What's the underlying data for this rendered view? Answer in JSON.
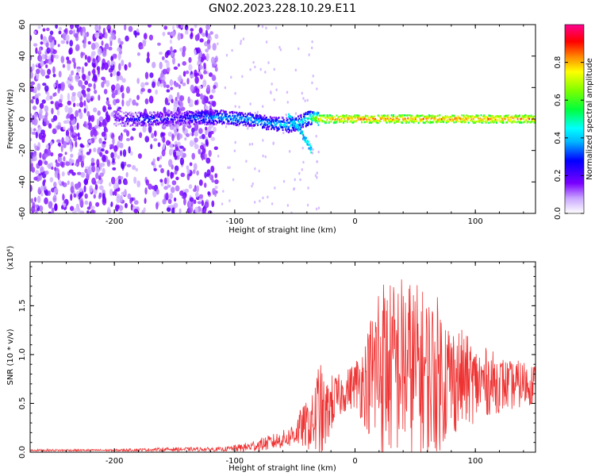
{
  "title": "GN02.2023.228.10.29.E11",
  "chart_data": [
    {
      "type": "heatmap",
      "xlabel": "Height of straight line (km)",
      "ylabel": "Frequency (Hz)",
      "xlim": [
        -270,
        150
      ],
      "ylim": [
        -60,
        60
      ],
      "x_ticks": [
        -200,
        -100,
        0,
        100
      ],
      "y_ticks": [
        -60,
        -40,
        -20,
        0,
        20,
        40,
        60
      ],
      "colorbar": {
        "label": "Normalized spectral amplitude",
        "range": [
          0,
          1
        ],
        "ticks": [
          "0.0",
          "0.2",
          "0.4",
          "0.6",
          "0.8"
        ],
        "colormap": [
          "#ffffff",
          "#7a00ff",
          "#0000ff",
          "#00ffff",
          "#00ff00",
          "#ffff00",
          "#ff7f00",
          "#ff0000",
          "#ff0090"
        ]
      },
      "ridge": {
        "x": [
          -195,
          -170,
          -150,
          -130,
          -110,
          -90,
          -70,
          -55,
          -45,
          -38,
          -30,
          -10,
          10,
          30,
          50,
          70,
          90,
          110,
          130,
          150
        ],
        "freq": [
          0,
          0,
          0,
          1,
          1,
          0,
          -3,
          -4,
          -2,
          1,
          0,
          0,
          0,
          0,
          0,
          0,
          0,
          0,
          0,
          0
        ],
        "amplitude": [
          0.25,
          0.35,
          0.3,
          0.4,
          0.45,
          0.45,
          0.45,
          0.5,
          0.5,
          0.55,
          0.85,
          0.9,
          0.9,
          0.9,
          0.9,
          0.9,
          0.9,
          0.9,
          0.9,
          0.9
        ]
      },
      "branch": {
        "x": [
          -55,
          -48,
          -42,
          -36
        ],
        "freq": [
          2,
          -5,
          -12,
          -20
        ]
      }
    },
    {
      "type": "line",
      "xlabel": "Height of straight line (km)",
      "ylabel": "SNR (10 * v/v)",
      "multiplier_label": "(x10⁴)",
      "xlim": [
        -270,
        150
      ],
      "ylim": [
        0,
        1.95
      ],
      "x_ticks": [
        -200,
        -100,
        0,
        100
      ],
      "y_ticks": [
        "0.0",
        "0.5",
        "1.0",
        "1.5"
      ],
      "y_tick_values": [
        0,
        0.5,
        1.0,
        1.5
      ],
      "color": "#ee3333",
      "envelope": {
        "x": [
          -270,
          -200,
          -150,
          -110,
          -90,
          -70,
          -55,
          -45,
          -35,
          -30,
          -25,
          -20,
          -10,
          0,
          10,
          15,
          20,
          30,
          40,
          50,
          60,
          70,
          80,
          90,
          100,
          110,
          120,
          130,
          140,
          150
        ],
        "mean": [
          0.02,
          0.02,
          0.03,
          0.03,
          0.05,
          0.1,
          0.15,
          0.25,
          0.3,
          0.4,
          0.35,
          0.5,
          0.6,
          0.7,
          0.72,
          0.8,
          0.9,
          0.85,
          0.9,
          0.85,
          0.8,
          0.8,
          0.75,
          0.75,
          0.7,
          0.72,
          0.7,
          0.68,
          0.7,
          0.7
        ],
        "amp": [
          0.01,
          0.01,
          0.02,
          0.02,
          0.05,
          0.08,
          0.1,
          0.2,
          0.3,
          0.6,
          0.35,
          0.3,
          0.2,
          0.25,
          0.5,
          0.8,
          1.0,
          0.9,
          0.95,
          0.9,
          0.85,
          0.8,
          0.6,
          0.5,
          0.4,
          0.35,
          0.3,
          0.25,
          0.25,
          0.2
        ]
      }
    }
  ]
}
